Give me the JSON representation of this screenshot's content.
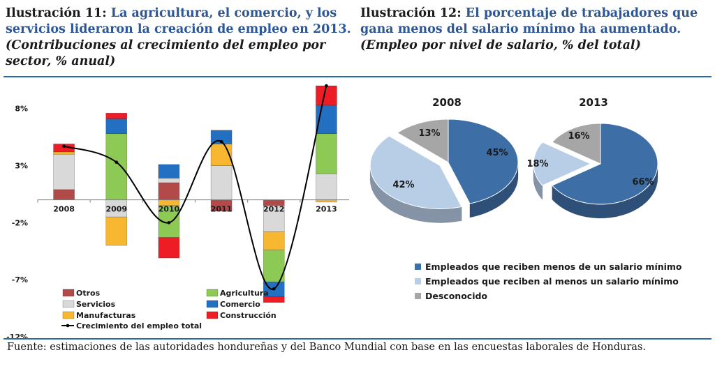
{
  "left": {
    "number": "Ilustración 11:",
    "title": "La agricultura, el comercio, y los servicios lideraron la creación de empleo en 2013.",
    "subtitle": "(Contribuciones al crecimiento del empleo por sector, % anual)"
  },
  "right": {
    "number": "Ilustración 12:",
    "title": "El porcentaje de trabajadores que gana menos del salario mínimo ha aumentado.",
    "subtitle": "(Empleo por nivel de salario, % del total)"
  },
  "source": "Fuente: estimaciones de las autoridades hondureñas y del Banco Mundial con base en las encuestas laborales de Honduras.",
  "chart_data": [
    {
      "type": "bar",
      "stacked": true,
      "categories": [
        "2008",
        "2009",
        "2010",
        "2011",
        "2012",
        "2013"
      ],
      "ylim": [
        -12,
        10
      ],
      "yticks": [
        8,
        3,
        -2,
        -7,
        -12
      ],
      "ytick_labels": [
        "8%",
        "3%",
        "-2%",
        "-7%",
        "-12%"
      ],
      "series": [
        {
          "name": "Otros",
          "color": "#b34a4a",
          "values": [
            0.9,
            0.0,
            1.5,
            -1.0,
            -0.5,
            0.0
          ]
        },
        {
          "name": "Servicios",
          "color": "#d9d9d9",
          "values": [
            3.1,
            -1.5,
            0.4,
            3.0,
            -2.3,
            2.3
          ]
        },
        {
          "name": "Manufacturas",
          "color": "#f7b731",
          "values": [
            0.2,
            -2.5,
            -0.5,
            1.9,
            -1.6,
            -0.2
          ]
        },
        {
          "name": "Agricultura",
          "color": "#8cc955",
          "values": [
            0.0,
            5.8,
            -2.8,
            0.0,
            -2.8,
            3.5
          ]
        },
        {
          "name": "Comercio",
          "color": "#2370c2",
          "values": [
            0.0,
            1.3,
            1.2,
            1.2,
            -1.3,
            2.5
          ]
        },
        {
          "name": "Construcción",
          "color": "#ee1c25",
          "values": [
            0.7,
            0.5,
            -1.8,
            0.0,
            -0.5,
            1.7
          ]
        }
      ],
      "line": {
        "name": "Crecimiento del empleo total",
        "color": "#000000",
        "values": [
          4.7,
          3.3,
          -2.0,
          5.1,
          -7.8,
          10.0
        ]
      }
    },
    {
      "type": "pie",
      "title": "2008",
      "labels": [
        "Empleados que reciben menos de un salario mínimo",
        "Empleados que reciben al menos un salario mínimo",
        "Desconocido"
      ],
      "values": [
        45,
        42,
        13
      ],
      "value_labels": [
        "45%",
        "42%",
        "13%"
      ],
      "colors": [
        "#3e6ea6",
        "#b8cde6",
        "#a6a6a6"
      ]
    },
    {
      "type": "pie",
      "title": "2013",
      "labels": [
        "Empleados que reciben menos de un salario mínimo",
        "Empleados que reciben al menos un salario mínimo",
        "Desconocido"
      ],
      "values": [
        66,
        18,
        16
      ],
      "value_labels": [
        "66%",
        "18%",
        "16%"
      ],
      "colors": [
        "#3e6ea6",
        "#b8cde6",
        "#a6a6a6"
      ]
    }
  ]
}
